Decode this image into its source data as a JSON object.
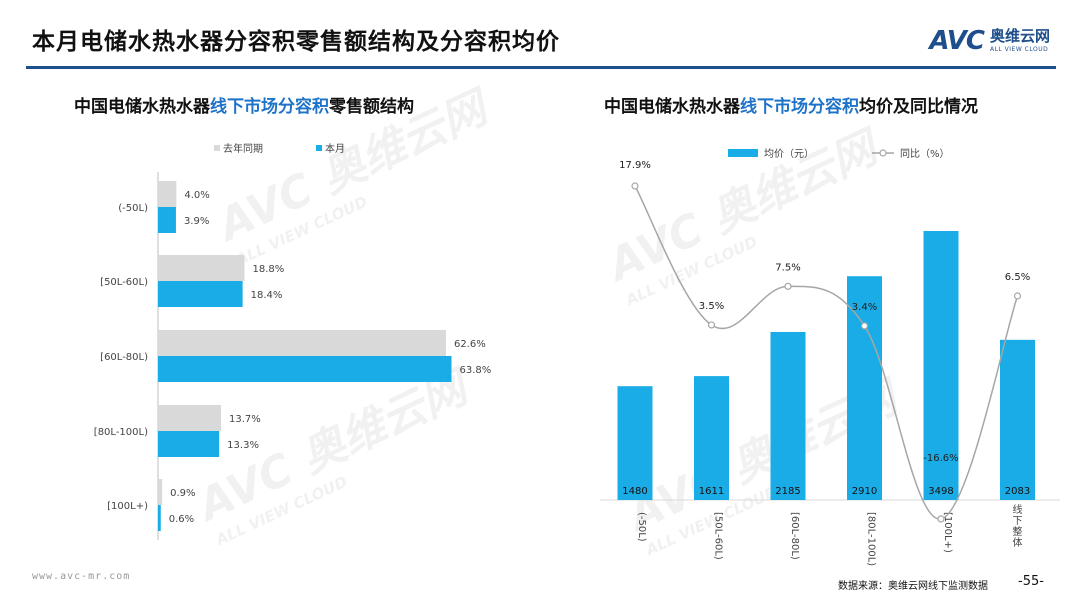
{
  "header": {
    "title": "本月电储水热水器分容积零售额结构及分容积均价"
  },
  "logo": {
    "mark": "AVC",
    "cn": "奥维云网",
    "en": "ALL VIEW CLOUD"
  },
  "left_chart": {
    "title_pre": "中国电储水热水器",
    "title_hl": "线下市场分容积",
    "title_post": "零售额结构"
  },
  "right_chart": {
    "title_pre": "中国电储水热水器",
    "title_hl": "线下市场分容积",
    "title_post": "均价及同比情况"
  },
  "chart_data": [
    {
      "type": "bar",
      "orientation": "horizontal",
      "categories": [
        "(-50L)",
        "[50L-60L)",
        "[60L-80L)",
        "[80L-100L)",
        "[100L+)"
      ],
      "series": [
        {
          "name": "去年同期",
          "values": [
            4.0,
            18.8,
            62.6,
            13.7,
            0.9
          ],
          "labels": [
            "4.0%",
            "18.8%",
            "62.6%",
            "13.7%",
            "0.9%"
          ],
          "color": "#d9d9d9"
        },
        {
          "name": "本月",
          "values": [
            3.9,
            18.4,
            63.8,
            13.3,
            0.6
          ],
          "labels": [
            "3.9%",
            "18.4%",
            "63.8%",
            "13.3%",
            "0.6%"
          ],
          "color": "#1aace6"
        }
      ],
      "xlim": [
        0,
        70
      ],
      "legend": "top"
    },
    {
      "type": "bar+line",
      "categories": [
        "(-50L)",
        "[50L-60L)",
        "[60L-80L)",
        "[80L-100L)",
        "[100L+)",
        "线下整体"
      ],
      "series": [
        {
          "name": "均价（元）",
          "type": "bar",
          "values": [
            1480,
            1611,
            2185,
            2910,
            3498,
            2083
          ],
          "labels": [
            "1480",
            "1611",
            "2185",
            "2910",
            "3498",
            "2083"
          ],
          "color": "#1aace6"
        },
        {
          "name": "同比（%）",
          "type": "line",
          "values": [
            17.9,
            3.5,
            7.5,
            3.4,
            -16.6,
            6.5
          ],
          "labels": [
            "17.9%",
            "3.5%",
            "7.5%",
            "3.4%",
            "-16.6%",
            "6.5%"
          ],
          "color": "#a6a6a6"
        }
      ],
      "ylim_bar": [
        0,
        3700
      ],
      "ylim_line": [
        -19,
        21
      ],
      "legend": "top"
    }
  ],
  "footer": {
    "url": "www.avc-mr.com",
    "source": "数据来源：奥维云网线下监测数据",
    "page": "-55-"
  },
  "watermark": {
    "mark": "AVC",
    "cn": "奥维云网",
    "en": "ALL VIEW CLOUD"
  }
}
